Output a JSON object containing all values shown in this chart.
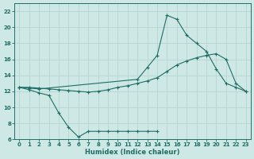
{
  "xlabel": "Humidex (Indice chaleur)",
  "xlim": [
    -0.5,
    23.5
  ],
  "ylim": [
    6,
    23
  ],
  "xticks": [
    0,
    1,
    2,
    3,
    4,
    5,
    6,
    7,
    8,
    9,
    10,
    11,
    12,
    13,
    14,
    15,
    16,
    17,
    18,
    19,
    20,
    21,
    22,
    23
  ],
  "yticks": [
    6,
    8,
    10,
    12,
    14,
    16,
    18,
    20,
    22
  ],
  "bg_color": "#cde8e5",
  "grid_color": "#b8d4d1",
  "line_color": "#1e6e65",
  "line1_x": [
    0,
    1,
    2,
    3,
    4,
    5,
    6,
    7,
    8,
    9,
    10,
    11,
    12,
    13,
    14
  ],
  "line1_y": [
    12.5,
    12.2,
    11.8,
    11.5,
    9.3,
    7.5,
    6.3,
    7.0,
    7.0,
    7.0,
    7.0,
    7.0,
    7.0,
    7.0,
    7.0
  ],
  "line2_x": [
    0,
    1,
    2,
    3,
    4,
    5,
    6,
    7,
    8,
    9,
    10,
    11,
    12,
    13,
    14,
    15,
    16,
    17,
    18,
    19,
    20,
    21,
    22,
    23
  ],
  "line2_y": [
    12.5,
    12.5,
    12.4,
    12.3,
    12.2,
    12.1,
    12.0,
    11.9,
    12.0,
    12.2,
    12.5,
    12.7,
    13.0,
    13.3,
    13.7,
    14.5,
    15.3,
    15.8,
    16.2,
    16.5,
    16.7,
    16.0,
    13.0,
    12.0
  ],
  "line3_x": [
    0,
    1,
    2,
    12,
    13,
    14,
    15,
    16,
    17,
    18,
    19,
    20,
    21,
    22,
    23
  ],
  "line3_y": [
    12.5,
    12.4,
    12.3,
    13.5,
    15.0,
    16.5,
    21.5,
    21.0,
    19.0,
    18.0,
    17.0,
    14.8,
    13.0,
    12.5,
    12.0
  ]
}
